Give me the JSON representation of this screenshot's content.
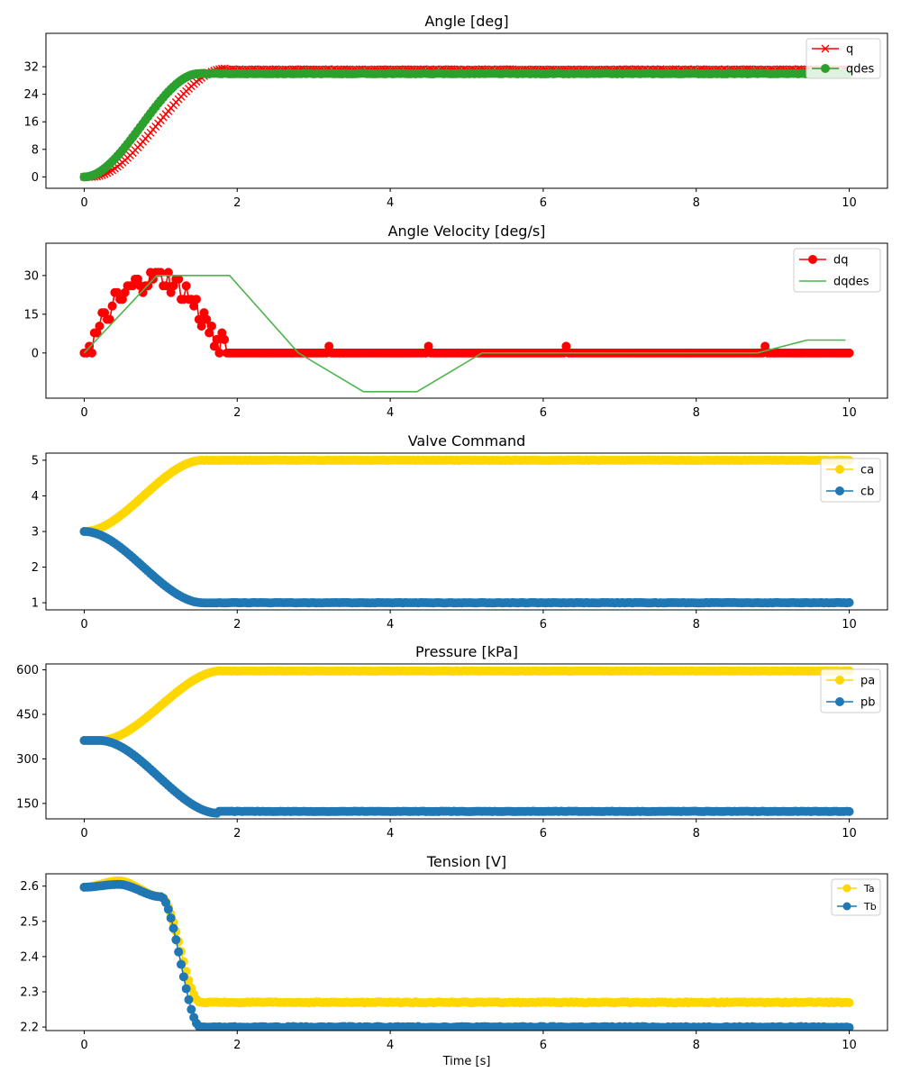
{
  "chart_data": [
    {
      "type": "line",
      "title": "Angle [deg]",
      "xlabel": "",
      "ylabel": "",
      "xlim": [
        -0.5,
        10.5
      ],
      "ylim": [
        -3.3,
        41.7
      ],
      "xticks": [
        0,
        2,
        4,
        6,
        8,
        10
      ],
      "yticks": [
        0,
        8,
        16,
        24,
        32
      ],
      "legend_position": "top-right",
      "series": [
        {
          "name": "q",
          "color": "#ff0000",
          "marker": "x",
          "line": true,
          "shape": "ramp",
          "params": {
            "t0": 0.1,
            "t1": 1.85,
            "v0": 0,
            "v1": 31.5,
            "hold": 31.2
          }
        },
        {
          "name": "qdes",
          "color": "#2ca02c",
          "marker": "circle",
          "line": true,
          "shape": "ramp",
          "params": {
            "t0": 0.0,
            "t1": 1.5,
            "v0": 0,
            "v1": 30.0,
            "hold": 30.0
          }
        }
      ]
    },
    {
      "type": "line",
      "title": "Angle Velocity [deg/s]",
      "xlabel": "",
      "ylabel": "",
      "xlim": [
        -0.5,
        10.5
      ],
      "ylim": [
        -17.5,
        42.5
      ],
      "xticks": [
        0,
        2,
        4,
        6,
        8,
        10
      ],
      "yticks": [
        0,
        15,
        30
      ],
      "legend_position": "top-right",
      "series": [
        {
          "name": "dq",
          "color": "#ff0000",
          "marker": "circle",
          "line": true,
          "shape": "noisy",
          "params": {}
        },
        {
          "name": "dqdes",
          "color": "#4cb54c",
          "marker": "none",
          "line": true,
          "shape": "points",
          "x": [
            0,
            0.95,
            1.9,
            2.8,
            3.65,
            4.35,
            5.2,
            8.8,
            9.45,
            9.95
          ],
          "y": [
            0,
            30,
            30,
            0,
            -15,
            -15,
            0,
            0,
            5,
            5
          ]
        }
      ]
    },
    {
      "type": "line",
      "title": "Valve Command",
      "xlabel": "",
      "ylabel": "",
      "xlim": [
        -0.5,
        10.5
      ],
      "ylim": [
        0.8,
        5.2
      ],
      "xticks": [
        0,
        2,
        4,
        6,
        8,
        10
      ],
      "yticks": [
        1,
        2,
        3,
        4,
        5
      ],
      "legend_position": "top-right",
      "series": [
        {
          "name": "ca",
          "color": "#ffd700",
          "marker": "circle",
          "line": true,
          "shape": "ramp",
          "params": {
            "t0": 0.0,
            "t1": 1.55,
            "v0": 3,
            "v1": 5,
            "hold": 5
          }
        },
        {
          "name": "cb",
          "color": "#1f77b4",
          "marker": "circle",
          "line": true,
          "shape": "ramp",
          "params": {
            "t0": 0.0,
            "t1": 1.55,
            "v0": 3,
            "v1": 1,
            "hold": 1
          }
        }
      ]
    },
    {
      "type": "line",
      "title": "Pressure [kPa]",
      "xlabel": "",
      "ylabel": "",
      "xlim": [
        -0.5,
        10.5
      ],
      "ylim": [
        98,
        620
      ],
      "xticks": [
        0,
        2,
        4,
        6,
        8,
        10
      ],
      "yticks": [
        150,
        300,
        450,
        600
      ],
      "legend_position": "top-right",
      "series": [
        {
          "name": "pa",
          "color": "#ffd700",
          "marker": "circle",
          "line": true,
          "shape": "ramp",
          "params": {
            "t0": 0.2,
            "t1": 1.8,
            "v0": 362,
            "v1": 597,
            "hold": 596
          }
        },
        {
          "name": "pb",
          "color": "#1f77b4",
          "marker": "circle",
          "line": true,
          "shape": "ramp",
          "params": {
            "t0": 0.2,
            "t1": 1.75,
            "v0": 362,
            "v1": 117,
            "hold": 123
          }
        }
      ]
    },
    {
      "type": "line",
      "title": "Tension [V]",
      "xlabel": "Time [s]",
      "ylabel": "",
      "xlim": [
        -0.5,
        10.5
      ],
      "ylim": [
        2.19,
        2.635
      ],
      "xticks": [
        0,
        2,
        4,
        6,
        8,
        10
      ],
      "yticks": [
        2.2,
        2.3,
        2.4,
        2.5,
        2.6
      ],
      "legend_position": "top-right",
      "series": [
        {
          "name": "Ta",
          "color": "#ffd700",
          "marker": "circle",
          "line": true,
          "shape": "tension",
          "params": {
            "peak": 2.615,
            "hold": 2.27
          }
        },
        {
          "name": "Tb",
          "color": "#1f77b4",
          "marker": "circle",
          "line": true,
          "shape": "tension",
          "params": {
            "peak": 2.605,
            "hold": 2.2
          }
        }
      ]
    }
  ]
}
